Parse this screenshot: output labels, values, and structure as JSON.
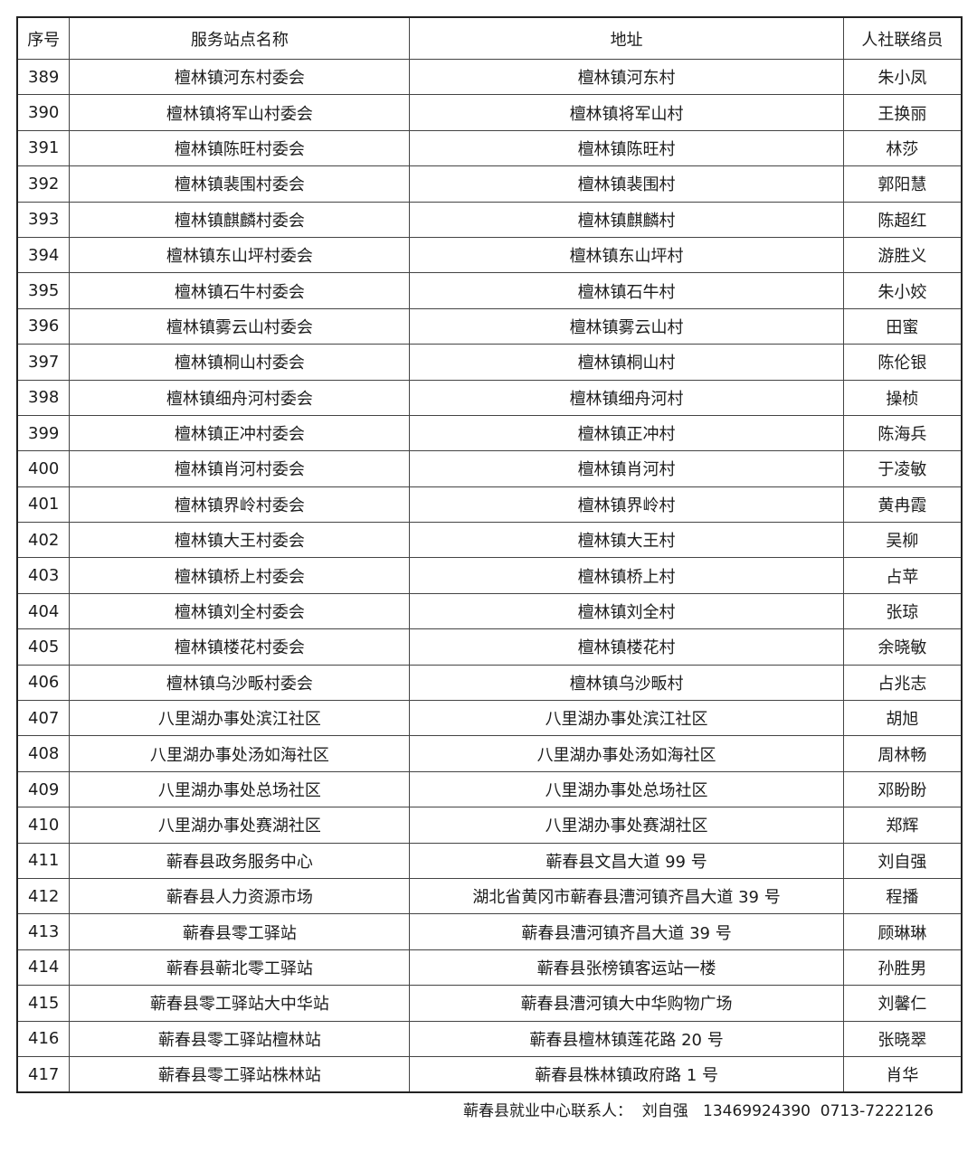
{
  "table": {
    "headers": [
      "序号",
      "服务站点名称",
      "地址",
      "人社联络员"
    ],
    "rows": [
      [
        "389",
        "檀林镇河东村委会",
        "檀林镇河东村",
        "朱小凤"
      ],
      [
        "390",
        "檀林镇将军山村委会",
        "檀林镇将军山村",
        "王换丽"
      ],
      [
        "391",
        "檀林镇陈旺村委会",
        "檀林镇陈旺村",
        "林莎"
      ],
      [
        "392",
        "檀林镇裴围村委会",
        "檀林镇裴围村",
        "郭阳慧"
      ],
      [
        "393",
        "檀林镇麒麟村委会",
        "檀林镇麒麟村",
        "陈超红"
      ],
      [
        "394",
        "檀林镇东山坪村委会",
        "檀林镇东山坪村",
        "游胜义"
      ],
      [
        "395",
        "檀林镇石牛村委会",
        "檀林镇石牛村",
        "朱小姣"
      ],
      [
        "396",
        "檀林镇雾云山村委会",
        "檀林镇雾云山村",
        "田蜜"
      ],
      [
        "397",
        "檀林镇桐山村委会",
        "檀林镇桐山村",
        "陈伦银"
      ],
      [
        "398",
        "檀林镇细舟河村委会",
        "檀林镇细舟河村",
        "操桢"
      ],
      [
        "399",
        "檀林镇正冲村委会",
        "檀林镇正冲村",
        "陈海兵"
      ],
      [
        "400",
        "檀林镇肖河村委会",
        "檀林镇肖河村",
        "于凌敏"
      ],
      [
        "401",
        "檀林镇界岭村委会",
        "檀林镇界岭村",
        "黄冉霞"
      ],
      [
        "402",
        "檀林镇大王村委会",
        "檀林镇大王村",
        "吴柳"
      ],
      [
        "403",
        "檀林镇桥上村委会",
        "檀林镇桥上村",
        "占苹"
      ],
      [
        "404",
        "檀林镇刘全村委会",
        "檀林镇刘全村",
        "张琼"
      ],
      [
        "405",
        "檀林镇楼花村委会",
        "檀林镇楼花村",
        "余晓敏"
      ],
      [
        "406",
        "檀林镇乌沙畈村委会",
        "檀林镇乌沙畈村",
        "占兆志"
      ],
      [
        "407",
        "八里湖办事处滨江社区",
        "八里湖办事处滨江社区",
        "胡旭"
      ],
      [
        "408",
        "八里湖办事处汤如海社区",
        "八里湖办事处汤如海社区",
        "周林畅"
      ],
      [
        "409",
        "八里湖办事处总场社区",
        "八里湖办事处总场社区",
        "邓盼盼"
      ],
      [
        "410",
        "八里湖办事处赛湖社区",
        "八里湖办事处赛湖社区",
        "郑辉"
      ],
      [
        "411",
        "蕲春县政务服务中心",
        "蕲春县文昌大道 99 号",
        "刘自强"
      ],
      [
        "412",
        "蕲春县人力资源市场",
        "湖北省黄冈市蕲春县漕河镇齐昌大道 39 号",
        "程播"
      ],
      [
        "413",
        "蕲春县零工驿站",
        "蕲春县漕河镇齐昌大道 39 号",
        "顾琳琳"
      ],
      [
        "414",
        "蕲春县蕲北零工驿站",
        "蕲春县张榜镇客运站一楼",
        "孙胜男"
      ],
      [
        "415",
        "蕲春县零工驿站大中华站",
        "蕲春县漕河镇大中华购物广场",
        "刘馨仁"
      ],
      [
        "416",
        "蕲春县零工驿站檀林站",
        "蕲春县檀林镇莲花路 20 号",
        "张晓翠"
      ],
      [
        "417",
        "蕲春县零工驿站株林站",
        "蕲春县株林镇政府路 1 号",
        "肖华"
      ]
    ]
  },
  "footer": "蕲春县就业中心联系人：  刘自强   13469924390  0713-7222126"
}
